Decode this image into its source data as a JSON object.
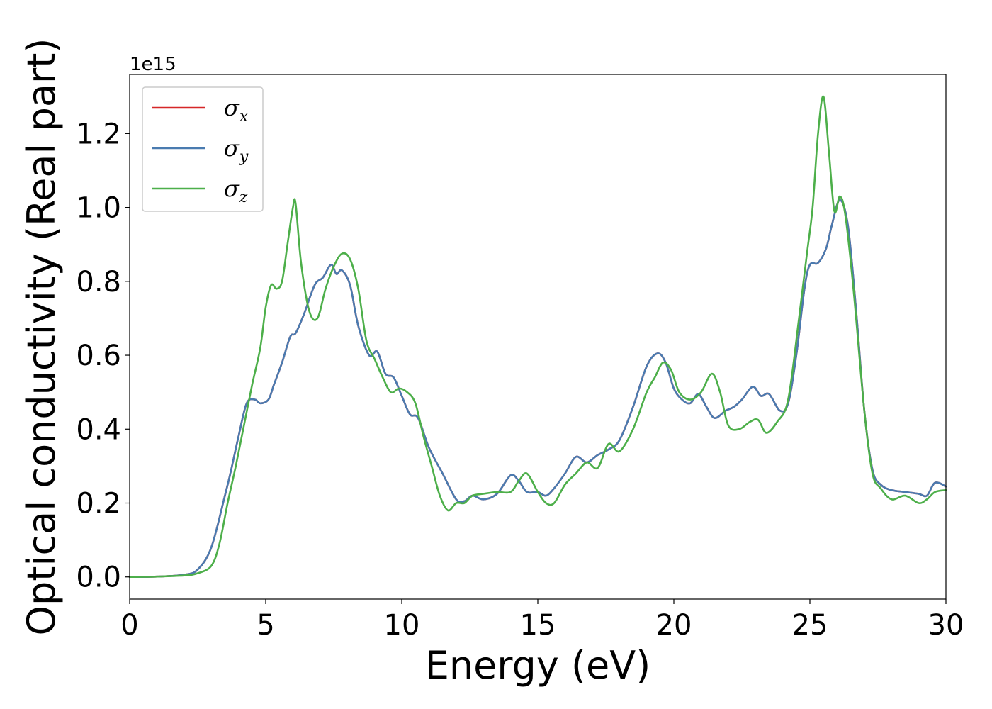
{
  "chart_data": {
    "type": "line",
    "title": "",
    "xlabel": "Energy (eV)",
    "ylabel": "Optical conductivity (Real part)",
    "y_offset_label": "1e15",
    "y_multiplier": 1000000000000000.0,
    "xlim": [
      0,
      30
    ],
    "ylim": [
      -0.06,
      1.36
    ],
    "x_ticks": [
      0,
      5,
      10,
      15,
      20,
      25,
      30
    ],
    "x_tick_labels": [
      "0",
      "5",
      "10",
      "15",
      "20",
      "25",
      "30"
    ],
    "y_ticks": [
      0.0,
      0.2,
      0.4,
      0.6,
      0.8,
      1.0,
      1.2
    ],
    "y_tick_labels": [
      "0.0",
      "0.2",
      "0.4",
      "0.6",
      "0.8",
      "1.0",
      "1.2"
    ],
    "grid": false,
    "legend_position": "top-left",
    "series": [
      {
        "name": "σx",
        "symbol": "σ",
        "subscript": "x",
        "color": "#d62728",
        "x": [
          0,
          1,
          2,
          2.5,
          3,
          3.5,
          3.7,
          4,
          4.3,
          4.6,
          4.8,
          5.1,
          5.3,
          5.6,
          5.9,
          6.1,
          6.4,
          6.8,
          7.1,
          7.4,
          7.6,
          7.8,
          8.1,
          8.4,
          8.8,
          9.1,
          9.4,
          9.7,
          10,
          10.3,
          10.6,
          11,
          11.5,
          12,
          12.3,
          12.6,
          13,
          13.5,
          14,
          14.3,
          14.6,
          15,
          15.3,
          15.6,
          16,
          16.4,
          16.8,
          17.2,
          17.6,
          18,
          18.5,
          19,
          19.4,
          19.7,
          20,
          20.3,
          20.6,
          20.9,
          21.2,
          21.5,
          21.9,
          22.2,
          22.5,
          22.9,
          23.2,
          23.5,
          23.9,
          24.2,
          24.5,
          24.8,
          25,
          25.3,
          25.6,
          25.8,
          26.1,
          26.4,
          26.7,
          27,
          27.3,
          27.6,
          28,
          28.5,
          29,
          29.3,
          29.6,
          30
        ],
        "y": [
          0,
          0.001,
          0.006,
          0.02,
          0.08,
          0.22,
          0.28,
          0.38,
          0.47,
          0.48,
          0.47,
          0.48,
          0.52,
          0.58,
          0.65,
          0.66,
          0.71,
          0.79,
          0.81,
          0.845,
          0.82,
          0.83,
          0.79,
          0.68,
          0.6,
          0.61,
          0.55,
          0.54,
          0.49,
          0.44,
          0.43,
          0.35,
          0.28,
          0.21,
          0.205,
          0.22,
          0.21,
          0.225,
          0.275,
          0.26,
          0.23,
          0.23,
          0.22,
          0.24,
          0.28,
          0.325,
          0.31,
          0.33,
          0.345,
          0.37,
          0.46,
          0.57,
          0.605,
          0.58,
          0.51,
          0.48,
          0.47,
          0.495,
          0.46,
          0.43,
          0.45,
          0.46,
          0.48,
          0.515,
          0.49,
          0.495,
          0.45,
          0.47,
          0.6,
          0.78,
          0.845,
          0.85,
          0.89,
          0.95,
          1.02,
          0.95,
          0.72,
          0.45,
          0.29,
          0.25,
          0.235,
          0.23,
          0.225,
          0.22,
          0.255,
          0.245
        ]
      },
      {
        "name": "σy",
        "symbol": "σ",
        "subscript": "y",
        "color": "#4a7bb0",
        "x": [
          0,
          1,
          2,
          2.5,
          3,
          3.5,
          3.7,
          4,
          4.3,
          4.6,
          4.8,
          5.1,
          5.3,
          5.6,
          5.9,
          6.1,
          6.4,
          6.8,
          7.1,
          7.4,
          7.6,
          7.8,
          8.1,
          8.4,
          8.8,
          9.1,
          9.4,
          9.7,
          10,
          10.3,
          10.6,
          11,
          11.5,
          12,
          12.3,
          12.6,
          13,
          13.5,
          14,
          14.3,
          14.6,
          15,
          15.3,
          15.6,
          16,
          16.4,
          16.8,
          17.2,
          17.6,
          18,
          18.5,
          19,
          19.4,
          19.7,
          20,
          20.3,
          20.6,
          20.9,
          21.2,
          21.5,
          21.9,
          22.2,
          22.5,
          22.9,
          23.2,
          23.5,
          23.9,
          24.2,
          24.5,
          24.8,
          25,
          25.3,
          25.6,
          25.8,
          26.1,
          26.4,
          26.7,
          27,
          27.3,
          27.6,
          28,
          28.5,
          29,
          29.3,
          29.6,
          30
        ],
        "y": [
          0,
          0.001,
          0.006,
          0.02,
          0.08,
          0.22,
          0.28,
          0.38,
          0.47,
          0.48,
          0.47,
          0.48,
          0.52,
          0.58,
          0.65,
          0.66,
          0.71,
          0.79,
          0.81,
          0.845,
          0.82,
          0.83,
          0.79,
          0.68,
          0.6,
          0.61,
          0.55,
          0.54,
          0.49,
          0.44,
          0.43,
          0.35,
          0.28,
          0.21,
          0.205,
          0.22,
          0.21,
          0.225,
          0.275,
          0.26,
          0.23,
          0.23,
          0.22,
          0.24,
          0.28,
          0.325,
          0.31,
          0.33,
          0.345,
          0.37,
          0.46,
          0.57,
          0.605,
          0.58,
          0.51,
          0.48,
          0.47,
          0.495,
          0.46,
          0.43,
          0.45,
          0.46,
          0.48,
          0.515,
          0.49,
          0.495,
          0.45,
          0.47,
          0.6,
          0.78,
          0.845,
          0.85,
          0.89,
          0.95,
          1.02,
          0.95,
          0.72,
          0.45,
          0.29,
          0.25,
          0.235,
          0.23,
          0.225,
          0.22,
          0.255,
          0.245
        ]
      },
      {
        "name": "σz",
        "symbol": "σ",
        "subscript": "z",
        "color": "#4daf4a",
        "x": [
          0,
          1,
          2,
          2.5,
          3,
          3.3,
          3.6,
          3.9,
          4.2,
          4.5,
          4.8,
          5.0,
          5.2,
          5.4,
          5.6,
          5.8,
          6.0,
          6.1,
          6.3,
          6.6,
          6.9,
          7.2,
          7.5,
          7.8,
          8.1,
          8.4,
          8.7,
          9.0,
          9.3,
          9.6,
          9.9,
          10.2,
          10.5,
          10.8,
          11.1,
          11.4,
          11.7,
          12.0,
          12.3,
          12.6,
          13,
          13.5,
          14,
          14.3,
          14.6,
          15,
          15.3,
          15.6,
          16,
          16.4,
          16.8,
          17.2,
          17.6,
          18,
          18.5,
          19,
          19.3,
          19.6,
          19.9,
          20.2,
          20.6,
          21,
          21.4,
          21.7,
          22,
          22.4,
          22.8,
          23.1,
          23.4,
          23.8,
          24.2,
          24.6,
          24.9,
          25.1,
          25.3,
          25.5,
          25.7,
          25.9,
          26.1,
          26.3,
          26.6,
          27,
          27.3,
          27.6,
          28,
          28.5,
          29,
          29.3,
          29.6,
          30
        ],
        "y": [
          0,
          0.001,
          0.004,
          0.01,
          0.03,
          0.09,
          0.2,
          0.3,
          0.41,
          0.52,
          0.62,
          0.73,
          0.79,
          0.78,
          0.8,
          0.9,
          1.0,
          1.01,
          0.85,
          0.72,
          0.7,
          0.78,
          0.84,
          0.875,
          0.86,
          0.78,
          0.64,
          0.59,
          0.54,
          0.5,
          0.51,
          0.5,
          0.47,
          0.38,
          0.3,
          0.22,
          0.18,
          0.2,
          0.2,
          0.22,
          0.225,
          0.23,
          0.23,
          0.26,
          0.28,
          0.23,
          0.2,
          0.2,
          0.25,
          0.28,
          0.31,
          0.295,
          0.36,
          0.34,
          0.4,
          0.5,
          0.54,
          0.58,
          0.56,
          0.5,
          0.48,
          0.5,
          0.55,
          0.5,
          0.41,
          0.4,
          0.42,
          0.425,
          0.39,
          0.42,
          0.48,
          0.7,
          0.88,
          1.0,
          1.2,
          1.3,
          1.15,
          0.99,
          1.03,
          0.98,
          0.78,
          0.45,
          0.28,
          0.24,
          0.21,
          0.22,
          0.2,
          0.21,
          0.23,
          0.235
        ]
      }
    ]
  }
}
